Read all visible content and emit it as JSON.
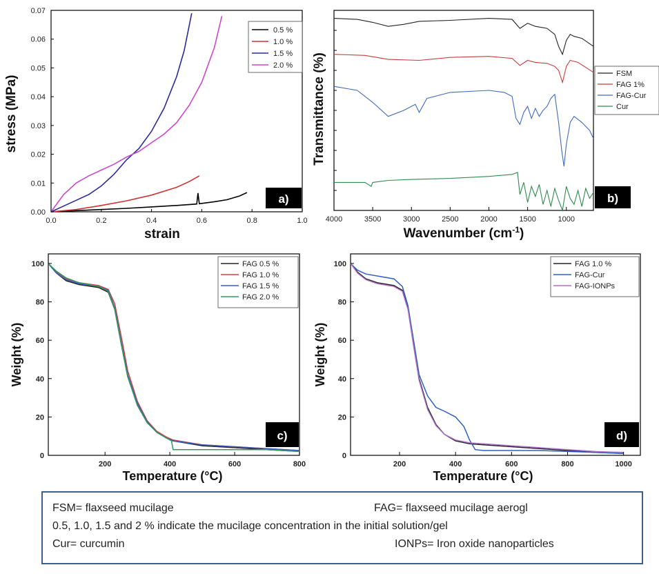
{
  "notes": {
    "fsm": "FSM= flaxseed mucilage",
    "fag": "FAG= flaxseed mucilage aerogl",
    "concentration": "0.5, 1.0, 1.5 and 2 %  indicate the mucilage concentration  in the initial solution/gel",
    "cur": "Cur= curcumin",
    "ionps": "IONPs= Iron oxide nanoparticles"
  },
  "chart_data": [
    {
      "panel": "a)",
      "type": "line",
      "xlabel": "strain",
      "ylabel": "stress (MPa)",
      "xlim": [
        0,
        1.0
      ],
      "ylim": [
        0,
        0.07
      ],
      "xticks": [
        "0.0",
        "0.2",
        "0.4",
        "0.6",
        "0.8",
        "1.0"
      ],
      "yticks": [
        "0.00",
        "0.01",
        "0.02",
        "0.03",
        "0.04",
        "0.05",
        "0.06",
        "0.07"
      ],
      "legend_position": "top-right",
      "series": [
        {
          "name": "0.5 %",
          "color": "#000000",
          "x": [
            0,
            0.1,
            0.2,
            0.3,
            0.4,
            0.5,
            0.58,
            0.585,
            0.59,
            0.65,
            0.7,
            0.75,
            0.78
          ],
          "y": [
            0,
            0.0004,
            0.0008,
            0.0012,
            0.0017,
            0.0022,
            0.0027,
            0.0065,
            0.0028,
            0.0035,
            0.0042,
            0.0055,
            0.0067
          ]
        },
        {
          "name": "1.0 %",
          "color": "#d03030",
          "x": [
            0,
            0.1,
            0.2,
            0.3,
            0.4,
            0.5,
            0.55,
            0.59
          ],
          "y": [
            0,
            0.0008,
            0.0022,
            0.0038,
            0.0058,
            0.0085,
            0.0105,
            0.0125
          ]
        },
        {
          "name": "1.5 %",
          "color": "#2a2a9a",
          "x": [
            0,
            0.05,
            0.1,
            0.15,
            0.2,
            0.25,
            0.3,
            0.35,
            0.4,
            0.45,
            0.5,
            0.53,
            0.56
          ],
          "y": [
            0,
            0.002,
            0.004,
            0.006,
            0.009,
            0.013,
            0.018,
            0.022,
            0.028,
            0.036,
            0.047,
            0.056,
            0.069
          ]
        },
        {
          "name": "2.0 %",
          "color": "#c848c8",
          "x": [
            0,
            0.05,
            0.1,
            0.15,
            0.2,
            0.25,
            0.3,
            0.35,
            0.4,
            0.45,
            0.5,
            0.55,
            0.6,
            0.65,
            0.68
          ],
          "y": [
            0,
            0.006,
            0.01,
            0.0125,
            0.0145,
            0.0165,
            0.019,
            0.021,
            0.024,
            0.027,
            0.031,
            0.037,
            0.045,
            0.057,
            0.068
          ]
        }
      ]
    },
    {
      "panel": "b)",
      "type": "line",
      "xlabel": "Wavenumber (cm-1)",
      "ylabel": "Transmittance (%)",
      "xlim": [
        4000,
        650
      ],
      "ylim": [
        0,
        100
      ],
      "xticks": [
        "4000",
        "3500",
        "3000",
        "2500",
        "2000",
        "1500",
        "1000"
      ],
      "legend_position": "outside-right",
      "series": [
        {
          "name": "FSM",
          "color": "#222222",
          "x": [
            4000,
            3700,
            3500,
            3300,
            3100,
            2900,
            2500,
            2000,
            1700,
            1600,
            1500,
            1400,
            1250,
            1150,
            1100,
            1050,
            1000,
            950,
            900,
            800,
            650
          ],
          "y": [
            96,
            95.5,
            94,
            92,
            93,
            94.5,
            95,
            96,
            95.5,
            91,
            93.5,
            92,
            91,
            88,
            82,
            78,
            85,
            88,
            87,
            86,
            82
          ]
        },
        {
          "name": "FAG 1%",
          "color": "#c83a3a",
          "x": [
            4000,
            3600,
            3300,
            2900,
            2500,
            2000,
            1700,
            1600,
            1500,
            1400,
            1250,
            1150,
            1100,
            1050,
            1000,
            950,
            850,
            650
          ],
          "y": [
            78,
            77.5,
            75.5,
            75,
            76.5,
            77,
            76,
            72.5,
            75,
            74,
            73.5,
            72,
            70,
            64,
            72,
            75,
            74,
            69
          ]
        },
        {
          "name": "FAG-Cur",
          "color": "#3f6ac2",
          "x": [
            4000,
            3700,
            3500,
            3300,
            3100,
            2950,
            2900,
            2800,
            2500,
            2000,
            1800,
            1700,
            1650,
            1600,
            1550,
            1500,
            1450,
            1400,
            1350,
            1300,
            1250,
            1200,
            1150,
            1100,
            1060,
            1030,
            1000,
            950,
            900,
            800,
            700,
            650
          ],
          "y": [
            62,
            60,
            54,
            47,
            50,
            53,
            49,
            56,
            59,
            60,
            59,
            57,
            46,
            43,
            49,
            52,
            46,
            51,
            47,
            50,
            52,
            56,
            58,
            44,
            30,
            22,
            33,
            44,
            47,
            44,
            40,
            36
          ]
        },
        {
          "name": "Cur",
          "color": "#2e8a4e",
          "x": [
            4000,
            3600,
            3520,
            3500,
            3300,
            3000,
            2500,
            2000,
            1700,
            1630,
            1600,
            1550,
            1500,
            1450,
            1400,
            1350,
            1300,
            1250,
            1200,
            1150,
            1100,
            1050,
            1000,
            950,
            900,
            850,
            800,
            750,
            700,
            650
          ],
          "y": [
            14,
            14,
            12,
            14,
            15,
            15.5,
            16,
            17,
            18,
            19,
            8,
            14,
            4,
            12,
            7,
            13,
            3,
            10,
            2,
            11,
            5,
            0,
            12,
            6,
            3,
            10,
            2,
            11,
            6,
            9
          ]
        }
      ]
    },
    {
      "panel": "c)",
      "type": "line",
      "xlabel": "Temperature (°C)",
      "ylabel": "Weight (%)",
      "xlim": [
        25,
        800
      ],
      "ylim": [
        0,
        105
      ],
      "xticks": [
        "200",
        "400",
        "600",
        "800"
      ],
      "yticks": [
        "0",
        "20",
        "40",
        "60",
        "80",
        "100"
      ],
      "legend_position": "top-right",
      "series": [
        {
          "name": "FAG 0.5 %",
          "color": "#222222",
          "x": [
            25,
            50,
            80,
            120,
            180,
            210,
            230,
            250,
            270,
            300,
            330,
            360,
            390,
            410,
            500,
            600,
            700,
            800
          ],
          "y": [
            100,
            95,
            91,
            89,
            87.5,
            85,
            76,
            58,
            41,
            26,
            17,
            12,
            9,
            7.5,
            5,
            4,
            3,
            2
          ]
        },
        {
          "name": "FAG 1.0 %",
          "color": "#d04040",
          "x": [
            25,
            50,
            80,
            120,
            180,
            210,
            230,
            250,
            270,
            300,
            330,
            360,
            390,
            410,
            500,
            600,
            700,
            800
          ],
          "y": [
            100,
            95.5,
            92,
            90,
            88.5,
            86.5,
            79,
            62,
            44,
            28,
            18,
            12.5,
            9.5,
            8,
            5.5,
            4.5,
            3.5,
            2.5
          ]
        },
        {
          "name": "FAG 1.5 %",
          "color": "#3a5ec2",
          "x": [
            25,
            50,
            80,
            120,
            180,
            210,
            230,
            250,
            270,
            300,
            330,
            360,
            390,
            410,
            500,
            600,
            700,
            800
          ],
          "y": [
            100,
            95,
            91.5,
            89.5,
            88,
            86,
            77,
            59,
            42,
            27,
            17.5,
            12,
            9,
            7.5,
            5.5,
            4.5,
            3.5,
            2.5
          ]
        },
        {
          "name": "FAG 2.0 %",
          "color": "#2e9a60",
          "x": [
            25,
            50,
            80,
            120,
            180,
            210,
            230,
            250,
            270,
            300,
            330,
            360,
            390,
            405,
            410,
            500,
            600,
            700,
            800
          ],
          "y": [
            100,
            96,
            92.5,
            90,
            88,
            85.5,
            76,
            58,
            41,
            26,
            17,
            12,
            9,
            7.5,
            3,
            3,
            3,
            3,
            2
          ]
        }
      ]
    },
    {
      "panel": "d)",
      "type": "line",
      "xlabel": "Temperature (°C)",
      "ylabel": "Weight (%)",
      "xlim": [
        25,
        1060
      ],
      "ylim": [
        0,
        105
      ],
      "xticks": [
        "200",
        "400",
        "600",
        "800",
        "1000"
      ],
      "yticks": [
        "0",
        "20",
        "40",
        "60",
        "80",
        "100"
      ],
      "legend_position": "top-right",
      "series": [
        {
          "name": "FAG 1.0 %",
          "color": "#222222",
          "x": [
            25,
            50,
            80,
            120,
            180,
            210,
            230,
            250,
            270,
            300,
            330,
            360,
            400,
            450,
            500,
            600,
            700,
            800,
            900,
            1000
          ],
          "y": [
            100,
            95.5,
            92,
            90,
            88.5,
            86,
            77,
            58,
            40,
            25,
            16,
            11,
            7.5,
            6,
            5.5,
            4.5,
            3.5,
            2.5,
            1.5,
            1
          ]
        },
        {
          "name": "FAG-Cur",
          "color": "#2f5fc0",
          "x": [
            25,
            50,
            80,
            120,
            180,
            210,
            230,
            250,
            270,
            300,
            330,
            360,
            400,
            430,
            450,
            470,
            500,
            600,
            700,
            800,
            900,
            1000
          ],
          "y": [
            100,
            96.5,
            94.5,
            93.5,
            92,
            88,
            78,
            60,
            42,
            31,
            25,
            23,
            20,
            15,
            8,
            3,
            2.5,
            2.5,
            2.5,
            2,
            1.5,
            1
          ]
        },
        {
          "name": "FAG-IONPs",
          "color": "#b070c8",
          "x": [
            25,
            50,
            80,
            120,
            180,
            210,
            230,
            250,
            270,
            300,
            330,
            360,
            400,
            450,
            500,
            600,
            700,
            800,
            900,
            1000
          ],
          "y": [
            100,
            95,
            91.5,
            89.5,
            88,
            85.5,
            76,
            57,
            39,
            24,
            15.5,
            11,
            8,
            6.5,
            6,
            5,
            4,
            3,
            2,
            1.5
          ]
        }
      ]
    }
  ]
}
